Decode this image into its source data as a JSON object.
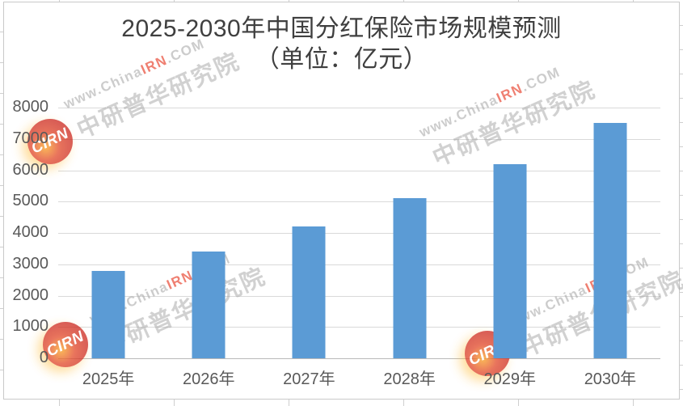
{
  "chart_data": {
    "type": "bar",
    "title": "2025-2030年中国分红保险市场规模预测",
    "subtitle": "（单位：亿元）",
    "unit": "亿元",
    "categories": [
      "2025年",
      "2026年",
      "2027年",
      "2028年",
      "2029年",
      "2030年"
    ],
    "values": [
      2800,
      3400,
      4200,
      5100,
      6200,
      7500
    ],
    "ylim": [
      0,
      8000
    ],
    "ytick_interval": 1000,
    "yticks": [
      "8000",
      "7000",
      "6000",
      "5000",
      "4000",
      "3000",
      "2000",
      "1000",
      "0"
    ],
    "xlabel": "",
    "ylabel": "",
    "grid": true,
    "legend": false,
    "bar_color": "#5B9BD5",
    "gridline_color": "#D9D9D9",
    "axis_label_color": "#595959",
    "title_color": "#3F3F3F"
  },
  "watermark": {
    "url_prefix": "www.China",
    "url_highlight": "IRN",
    "url_suffix": ".COM",
    "agency": "中研普华研究院",
    "logo_text": "CIRN"
  }
}
